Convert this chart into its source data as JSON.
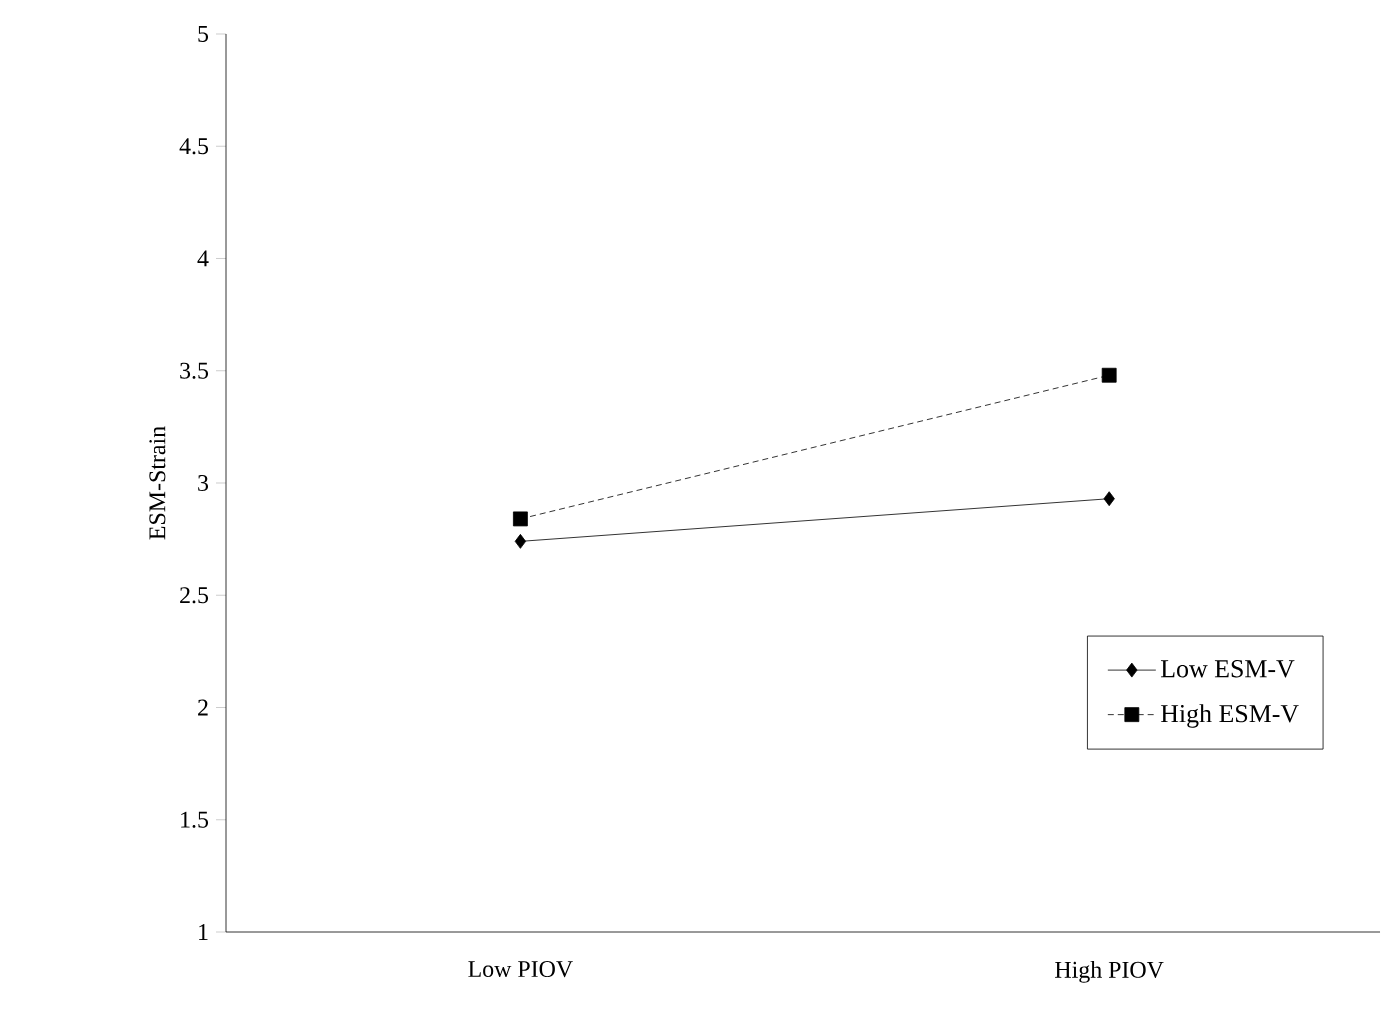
{
  "chart_data": {
    "type": "line",
    "ylabel": "ESM-Strain",
    "categories": [
      "Low PIOV",
      "High PIOV"
    ],
    "series": [
      {
        "name": "Low ESM-V",
        "color": "#000000",
        "values": [
          2.74,
          2.93
        ],
        "marker": "diamond",
        "line_style": "solid"
      },
      {
        "name": "High ESM-V",
        "color": "#000000",
        "values": [
          2.84,
          3.48
        ],
        "marker": "square",
        "line_style": "dotted"
      }
    ],
    "ylim": [
      1,
      5
    ],
    "yticks": [
      1,
      1.5,
      2,
      2.5,
      3,
      3.5,
      4,
      4.5,
      5
    ],
    "grid": false,
    "legend": "bottom right"
  }
}
